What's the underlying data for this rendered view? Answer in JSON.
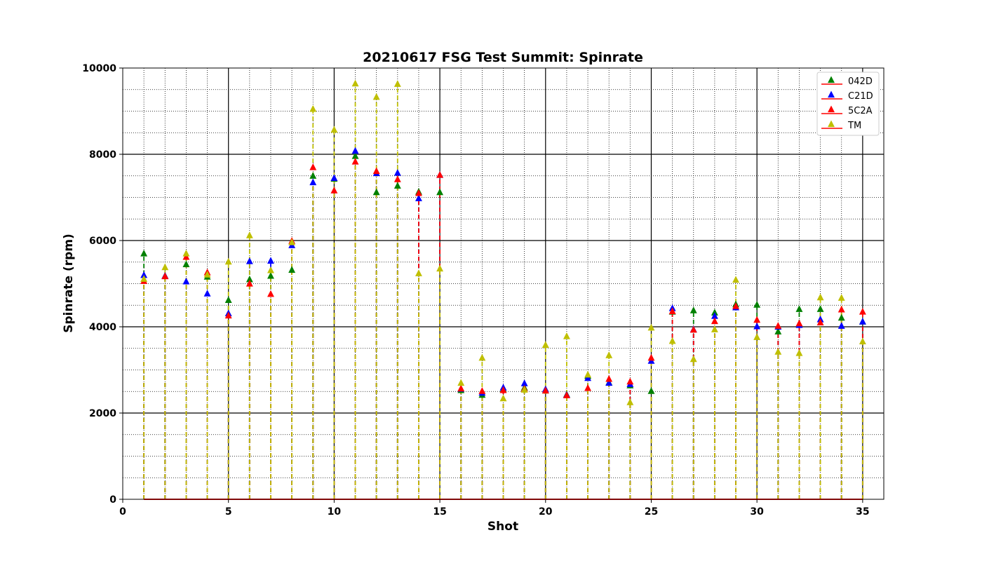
{
  "chart_data": {
    "type": "scatter",
    "title": "20210617 FSG Test Summit: Spinrate",
    "xlabel": "Shot",
    "ylabel": "Spinrate (rpm)",
    "xlim": [
      0,
      36
    ],
    "ylim": [
      0,
      10000
    ],
    "x_ticks": [
      0,
      5,
      10,
      15,
      20,
      25,
      30,
      35
    ],
    "y_ticks": [
      0,
      2000,
      4000,
      6000,
      8000,
      10000
    ],
    "x_minor_step": 1,
    "y_minor_step": 500,
    "grid": true,
    "legend_position": "top-right",
    "marker": "triangle-up",
    "stem_lines": true,
    "x": [
      1,
      2,
      3,
      4,
      5,
      6,
      7,
      8,
      9,
      10,
      11,
      12,
      13,
      14,
      15,
      16,
      17,
      18,
      19,
      20,
      21,
      22,
      23,
      24,
      25,
      26,
      27,
      28,
      29,
      30,
      31,
      32,
      33,
      34,
      35
    ],
    "series": [
      {
        "name": "042D",
        "color": "#008000",
        "values": [
          5700,
          5180,
          5450,
          5160,
          4620,
          5100,
          5180,
          5320,
          7500,
          7430,
          7960,
          7120,
          7270,
          7130,
          7120,
          2530,
          2420,
          2550,
          2590,
          2520,
          2430,
          2860,
          2710,
          2640,
          2510,
          4350,
          4380,
          4330,
          4520,
          4510,
          3890,
          4410,
          4410,
          4210,
          4120
        ]
      },
      {
        "name": "C21D",
        "color": "#0000ff",
        "values": [
          5200,
          5180,
          5050,
          4770,
          4310,
          5520,
          5530,
          5890,
          7350,
          7450,
          8080,
          7560,
          7570,
          6980,
          7520,
          2560,
          2470,
          2590,
          2690,
          2550,
          2420,
          2810,
          2700,
          2670,
          3210,
          4430,
          3940,
          4250,
          4450,
          4010,
          4000,
          4040,
          4170,
          4020,
          4120
        ]
      },
      {
        "name": "5C2A",
        "color": "#ff0000",
        "values": [
          5060,
          5170,
          5620,
          5260,
          4260,
          5000,
          4760,
          5990,
          7700,
          7160,
          7830,
          7610,
          7420,
          7100,
          7520,
          2570,
          2510,
          2530,
          2560,
          2520,
          2410,
          2580,
          2790,
          2730,
          3280,
          4360,
          3930,
          4130,
          4480,
          4160,
          4020,
          4080,
          4100,
          4400,
          4350
        ]
      },
      {
        "name": "TM",
        "color": "#bfbf00",
        "values": [
          5110,
          5380,
          5700,
          5210,
          5510,
          6120,
          5310,
          5960,
          9050,
          8570,
          9640,
          9330,
          9630,
          5240,
          5350,
          2700,
          3280,
          2340,
          2540,
          3580,
          3780,
          2890,
          3340,
          2250,
          3980,
          3670,
          3250,
          3940,
          5090,
          3760,
          3420,
          3390,
          4680,
          4670,
          3660
        ]
      }
    ]
  }
}
